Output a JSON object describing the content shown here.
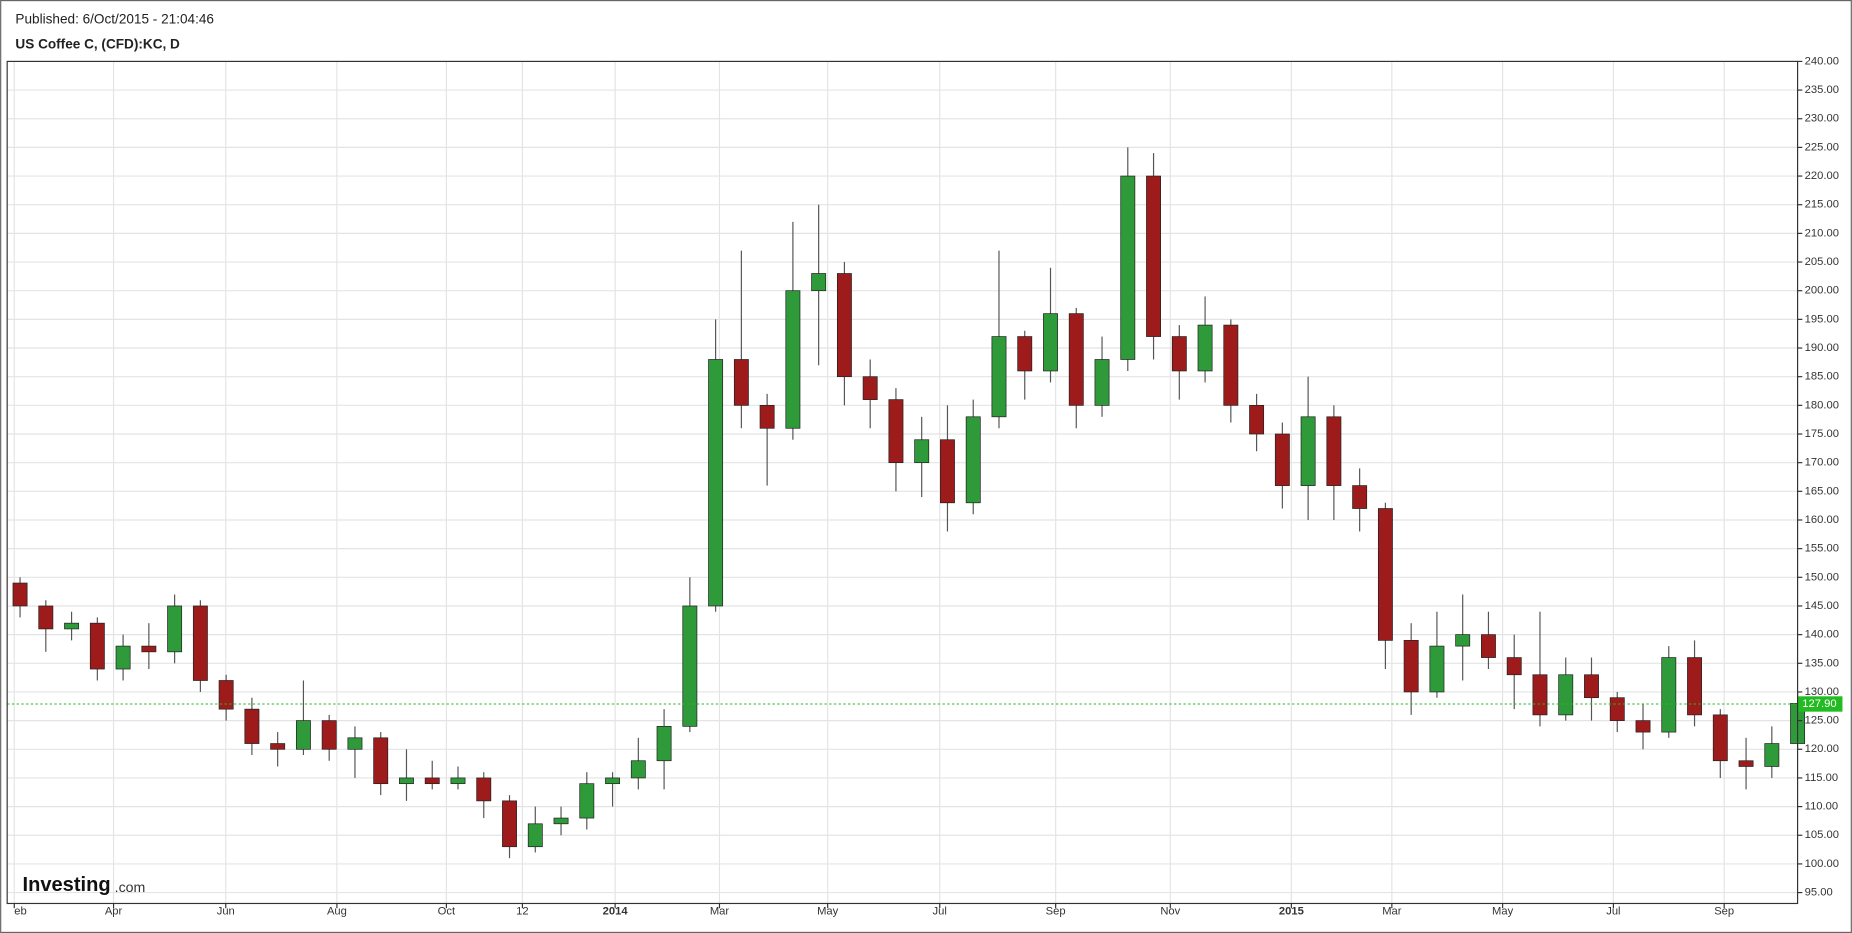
{
  "header": {
    "published": "Published: 6/Oct/2015 - 21:04:46",
    "symbol": "US Coffee C, (CFD):KC, D"
  },
  "logo": {
    "name": "Investing",
    "suffix": ".com"
  },
  "chart_data": {
    "type": "candlestick",
    "x": [
      1,
      3,
      5,
      7,
      9,
      11,
      13,
      15,
      17,
      19,
      21,
      23,
      25,
      27,
      29,
      31,
      33,
      35,
      37,
      39,
      41,
      43,
      45,
      47,
      49,
      51,
      53,
      55,
      57,
      59,
      61,
      63,
      65,
      67,
      69,
      71,
      73,
      75,
      77,
      79,
      81,
      83,
      85,
      87,
      89,
      91,
      93,
      95,
      97,
      99,
      101,
      103,
      105,
      107,
      109,
      111,
      113,
      115,
      117,
      119,
      121,
      123,
      125,
      127,
      129,
      131,
      133,
      135,
      137,
      139
    ],
    "open": [
      149,
      145,
      141,
      142,
      134,
      138,
      137,
      145,
      132,
      127,
      121,
      120,
      125,
      120,
      122,
      114,
      115,
      114,
      115,
      111,
      103,
      107,
      108,
      114,
      115,
      118,
      124,
      145,
      188,
      180,
      176,
      200,
      203,
      185,
      181,
      170,
      174,
      163,
      178,
      192,
      186,
      196,
      180,
      188,
      220,
      192,
      186,
      194,
      180,
      175,
      166,
      178,
      166,
      162,
      139,
      130,
      138,
      140,
      136,
      133,
      126,
      133,
      129,
      125,
      123,
      136,
      126,
      118,
      117,
      121
    ],
    "high": [
      150,
      146,
      144,
      143,
      140,
      142,
      147,
      146,
      133,
      129,
      123,
      132,
      126,
      124,
      123,
      120,
      118,
      117,
      116,
      112,
      110,
      110,
      116,
      116,
      122,
      127,
      150,
      195,
      207,
      182,
      212,
      215,
      205,
      188,
      183,
      178,
      180,
      181,
      207,
      193,
      204,
      197,
      192,
      225,
      224,
      194,
      199,
      195,
      182,
      177,
      185,
      180,
      169,
      163,
      142,
      144,
      147,
      144,
      140,
      144,
      136,
      136,
      130,
      128,
      138,
      139,
      127,
      122,
      124,
      130
    ],
    "low": [
      143,
      137,
      139,
      132,
      132,
      134,
      135,
      130,
      125,
      119,
      117,
      119,
      118,
      115,
      112,
      111,
      113,
      113,
      108,
      101,
      102,
      105,
      106,
      110,
      113,
      113,
      123,
      144,
      176,
      166,
      174,
      187,
      180,
      176,
      165,
      164,
      158,
      161,
      176,
      181,
      184,
      176,
      178,
      186,
      188,
      181,
      184,
      177,
      172,
      162,
      160,
      160,
      158,
      134,
      126,
      129,
      132,
      134,
      127,
      124,
      125,
      125,
      123,
      120,
      122,
      124,
      115,
      113,
      115,
      120
    ],
    "close": [
      145,
      141,
      142,
      134,
      138,
      137,
      145,
      132,
      127,
      121,
      120,
      125,
      120,
      122,
      114,
      115,
      114,
      115,
      111,
      103,
      107,
      108,
      114,
      115,
      118,
      124,
      145,
      188,
      180,
      176,
      200,
      203,
      185,
      181,
      170,
      174,
      163,
      178,
      192,
      186,
      196,
      180,
      188,
      220,
      192,
      186,
      194,
      180,
      175,
      166,
      178,
      166,
      162,
      139,
      130,
      138,
      140,
      136,
      133,
      126,
      133,
      129,
      125,
      123,
      136,
      126,
      118,
      117,
      121,
      128
    ],
    "up_color": "#2f9a3a",
    "down_color": "#9e1b1b",
    "wick_color": "#555555",
    "xlim": [
      0,
      139
    ],
    "xticks": [
      {
        "value": 0.55,
        "label": "eb"
      },
      {
        "value": 8.26,
        "label": "Apr"
      },
      {
        "value": 16.97,
        "label": "Jun"
      },
      {
        "value": 25.6,
        "label": "Aug"
      },
      {
        "value": 34.1,
        "label": "Oct"
      },
      {
        "value": 40.0,
        "label": "12"
      },
      {
        "value": 47.2,
        "label": "2014"
      },
      {
        "value": 55.3,
        "label": "Mar"
      },
      {
        "value": 63.7,
        "label": "May"
      },
      {
        "value": 72.4,
        "label": "Jul"
      },
      {
        "value": 81.4,
        "label": "Sep"
      },
      {
        "value": 90.3,
        "label": "Nov"
      },
      {
        "value": 99.7,
        "label": "2015"
      },
      {
        "value": 107.5,
        "label": "Mar"
      },
      {
        "value": 116.1,
        "label": "May"
      },
      {
        "value": 124.7,
        "label": "Jul"
      },
      {
        "value": 133.3,
        "label": "Sep"
      }
    ],
    "ylim": [
      93.1,
      240
    ],
    "yticks": [
      {
        "value": 95,
        "label": "95.00"
      },
      {
        "value": 100,
        "label": "100.00"
      },
      {
        "value": 105,
        "label": "105.00"
      },
      {
        "value": 110,
        "label": "110.00"
      },
      {
        "value": 115,
        "label": "115.00"
      },
      {
        "value": 120,
        "label": "120.00"
      },
      {
        "value": 125,
        "label": "125.00"
      },
      {
        "value": 130,
        "label": "130.00"
      },
      {
        "value": 135,
        "label": "135.00"
      },
      {
        "value": 140,
        "label": "140.00"
      },
      {
        "value": 145,
        "label": "145.00"
      },
      {
        "value": 150,
        "label": "150.00"
      },
      {
        "value": 155,
        "label": "155.00"
      },
      {
        "value": 160,
        "label": "160.00"
      },
      {
        "value": 165,
        "label": "165.00"
      },
      {
        "value": 170,
        "label": "170.00"
      },
      {
        "value": 175,
        "label": "175.00"
      },
      {
        "value": 180,
        "label": "180.00"
      },
      {
        "value": 185,
        "label": "185.00"
      },
      {
        "value": 190,
        "label": "190.00"
      },
      {
        "value": 195,
        "label": "195.00"
      },
      {
        "value": 200,
        "label": "200.00"
      },
      {
        "value": 205,
        "label": "205.00"
      },
      {
        "value": 210,
        "label": "210.00"
      },
      {
        "value": 215,
        "label": "215.00"
      },
      {
        "value": 220,
        "label": "220.00"
      },
      {
        "value": 225,
        "label": "225.00"
      },
      {
        "value": 230,
        "label": "230.00"
      },
      {
        "value": 235,
        "label": "235.00"
      },
      {
        "value": 240,
        "label": "240.00"
      }
    ],
    "grid": true,
    "last_price": {
      "value": 127.9,
      "label": "127.90"
    },
    "last_price_color": "#22bb22"
  }
}
